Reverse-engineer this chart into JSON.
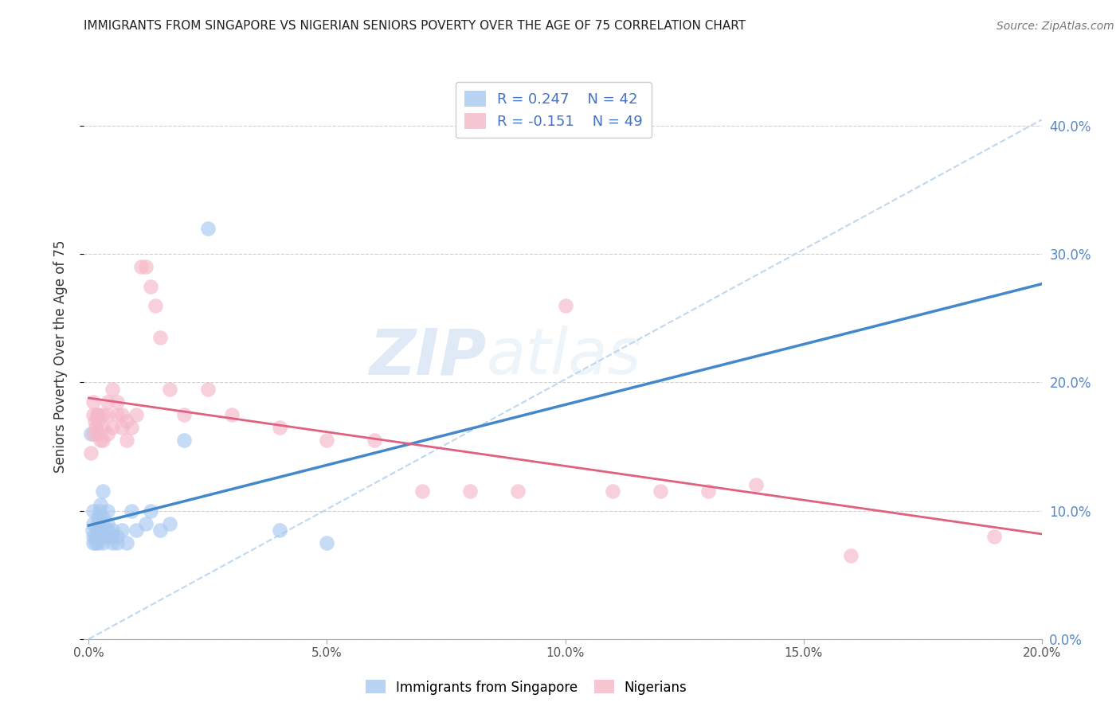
{
  "title": "IMMIGRANTS FROM SINGAPORE VS NIGERIAN SENIORS POVERTY OVER THE AGE OF 75 CORRELATION CHART",
  "source": "Source: ZipAtlas.com",
  "ylabel": "Seniors Poverty Over the Age of 75",
  "xlim": [
    0.0,
    0.2
  ],
  "ylim": [
    0.0,
    0.44
  ],
  "color_singapore": "#a8c8f0",
  "color_nigeria": "#f5b8c8",
  "color_singapore_line": "#4488cc",
  "color_nigeria_line": "#e06080",
  "color_dashed": "#b8d4ee",
  "singapore_x": [
    0.0005,
    0.0008,
    0.001,
    0.001,
    0.001,
    0.001,
    0.0015,
    0.0015,
    0.0018,
    0.002,
    0.002,
    0.002,
    0.002,
    0.002,
    0.0022,
    0.0025,
    0.003,
    0.003,
    0.003,
    0.003,
    0.003,
    0.004,
    0.004,
    0.004,
    0.004,
    0.005,
    0.005,
    0.005,
    0.006,
    0.006,
    0.007,
    0.008,
    0.009,
    0.01,
    0.012,
    0.013,
    0.015,
    0.017,
    0.02,
    0.025,
    0.04,
    0.05
  ],
  "singapore_y": [
    0.16,
    0.085,
    0.075,
    0.08,
    0.09,
    0.1,
    0.075,
    0.08,
    0.085,
    0.075,
    0.08,
    0.085,
    0.09,
    0.095,
    0.1,
    0.105,
    0.075,
    0.08,
    0.09,
    0.095,
    0.115,
    0.08,
    0.085,
    0.09,
    0.1,
    0.075,
    0.08,
    0.085,
    0.075,
    0.08,
    0.085,
    0.075,
    0.1,
    0.085,
    0.09,
    0.1,
    0.085,
    0.09,
    0.155,
    0.32,
    0.085,
    0.075
  ],
  "nigeria_x": [
    0.0005,
    0.001,
    0.001,
    0.001,
    0.0012,
    0.0015,
    0.0018,
    0.002,
    0.002,
    0.002,
    0.0025,
    0.003,
    0.003,
    0.003,
    0.004,
    0.004,
    0.004,
    0.005,
    0.005,
    0.006,
    0.006,
    0.007,
    0.007,
    0.008,
    0.008,
    0.009,
    0.01,
    0.011,
    0.012,
    0.013,
    0.014,
    0.015,
    0.017,
    0.02,
    0.025,
    0.03,
    0.04,
    0.05,
    0.06,
    0.07,
    0.08,
    0.09,
    0.1,
    0.11,
    0.12,
    0.13,
    0.14,
    0.16,
    0.19
  ],
  "nigeria_y": [
    0.145,
    0.16,
    0.175,
    0.185,
    0.17,
    0.165,
    0.175,
    0.17,
    0.175,
    0.16,
    0.155,
    0.175,
    0.165,
    0.155,
    0.185,
    0.175,
    0.16,
    0.195,
    0.165,
    0.185,
    0.175,
    0.175,
    0.165,
    0.17,
    0.155,
    0.165,
    0.175,
    0.29,
    0.29,
    0.275,
    0.26,
    0.235,
    0.195,
    0.175,
    0.195,
    0.175,
    0.165,
    0.155,
    0.155,
    0.115,
    0.115,
    0.115,
    0.26,
    0.115,
    0.115,
    0.115,
    0.12,
    0.065,
    0.08
  ],
  "watermark_zip": "ZIP",
  "watermark_atlas": "atlas",
  "background_color": "#ffffff",
  "grid_color": "#d0d0d0"
}
